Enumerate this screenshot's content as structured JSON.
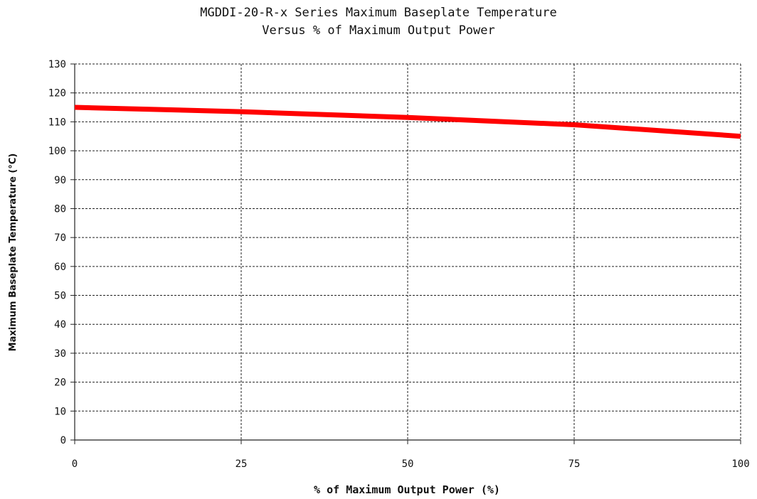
{
  "chart_data": {
    "type": "line",
    "title_lines": [
      "MGDDI-20-R-x Series Maximum Baseplate Temperature",
      "Versus % of Maximum Output Power"
    ],
    "xlabel": "% of Maximum Output Power (%)",
    "ylabel": "Maximum Baseplate Temperature (°C)",
    "xlim": [
      0,
      100
    ],
    "ylim": [
      0,
      130
    ],
    "xticks": [
      0,
      25,
      50,
      75,
      100
    ],
    "yticks": [
      0,
      10,
      20,
      30,
      40,
      50,
      60,
      70,
      80,
      90,
      100,
      110,
      120,
      130
    ],
    "grid": true,
    "grid_style": "dashed",
    "series": [
      {
        "color": "#ff0000",
        "x": [
          0,
          25,
          50,
          75,
          100
        ],
        "y": [
          115,
          113.5,
          111.5,
          109,
          105
        ]
      }
    ]
  }
}
